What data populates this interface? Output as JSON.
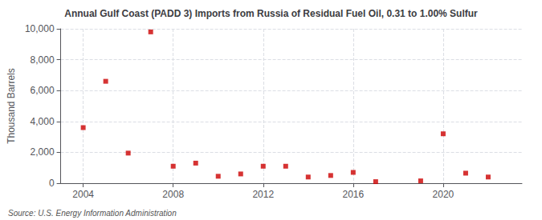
{
  "chart_data": {
    "type": "scatter",
    "title": "Annual Gulf Coast (PADD 3) Imports from Russia of Residual Fuel Oil, 0.31 to 1.00% Sulfur",
    "ylabel": "Thousand Barrels",
    "annotations": [
      "Source: U.S. Energy Information Administration"
    ],
    "x": [
      2004,
      2005,
      2006,
      2007,
      2008,
      2009,
      2010,
      2011,
      2012,
      2013,
      2014,
      2015,
      2016,
      2017,
      2019,
      2020,
      2021,
      2022
    ],
    "values": [
      3600,
      6600,
      1950,
      9800,
      1100,
      1300,
      450,
      600,
      1100,
      1100,
      400,
      500,
      700,
      100,
      150,
      3200,
      650,
      400
    ],
    "color": "#cc0000",
    "marker": "square",
    "xlim": [
      2003.0,
      2023.5
    ],
    "xticks": [
      2004,
      2008,
      2012,
      2016,
      2020
    ],
    "ylim": [
      0,
      10000
    ],
    "yticks": [
      0,
      {
        "value": 2000,
        "label": "2,000"
      },
      {
        "value": 4000,
        "label": "4,000"
      },
      {
        "value": 6000,
        "label": "6,000"
      },
      {
        "value": 8000,
        "label": "8,000"
      },
      {
        "value": 10000,
        "label": "10,000"
      }
    ],
    "grid": true
  }
}
